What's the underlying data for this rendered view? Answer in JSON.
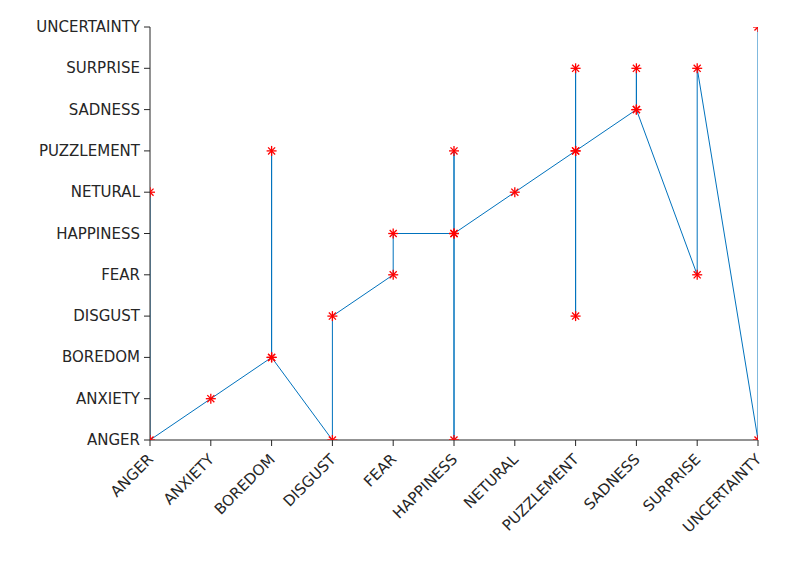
{
  "chart_data": {
    "type": "line",
    "x": [
      0,
      0,
      1,
      2,
      2,
      2,
      3,
      3,
      4,
      4,
      5,
      5,
      5,
      5,
      6,
      7,
      7,
      7,
      7,
      8,
      8,
      8,
      9,
      9,
      10,
      10
    ],
    "series": [
      {
        "values": [
          6,
          0,
          1,
          2,
          7,
          2,
          0,
          3,
          4,
          5,
          5,
          7,
          0,
          5,
          6,
          7,
          9,
          3,
          7,
          8,
          9,
          8,
          4,
          9,
          0,
          10
        ],
        "color": "#0072bd",
        "marker": "asterisk",
        "line_style": "solid"
      }
    ],
    "xlim": [
      0,
      10
    ],
    "xticks": [
      {
        "value": 0,
        "label": "ANGER"
      },
      {
        "value": 1,
        "label": "ANXIETY"
      },
      {
        "value": 2,
        "label": "BOREDOM"
      },
      {
        "value": 3,
        "label": "DISGUST"
      },
      {
        "value": 4,
        "label": "FEAR"
      },
      {
        "value": 5,
        "label": "HAPPINESS"
      },
      {
        "value": 6,
        "label": "NETURAL"
      },
      {
        "value": 7,
        "label": "PUZZLEMENT"
      },
      {
        "value": 8,
        "label": "SADNESS"
      },
      {
        "value": 9,
        "label": "SURPRISE"
      },
      {
        "value": 10,
        "label": "UNCERTAINTY"
      }
    ],
    "ylim": [
      0,
      10
    ],
    "yticks": [
      {
        "value": 0,
        "label": "ANGER"
      },
      {
        "value": 1,
        "label": "ANXIETY"
      },
      {
        "value": 2,
        "label": "BOREDOM"
      },
      {
        "value": 3,
        "label": "DISGUST"
      },
      {
        "value": 4,
        "label": "FEAR"
      },
      {
        "value": 5,
        "label": "HAPPINESS"
      },
      {
        "value": 6,
        "label": "NETURAL"
      },
      {
        "value": 7,
        "label": "PUZZLEMENT"
      },
      {
        "value": 8,
        "label": "SADNESS"
      },
      {
        "value": 9,
        "label": "SURPRISE"
      },
      {
        "value": 10,
        "label": "UNCERTAINTY"
      }
    ],
    "grid": false
  }
}
